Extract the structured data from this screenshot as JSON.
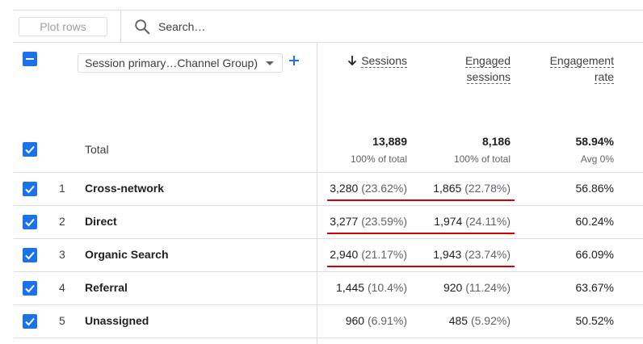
{
  "toolbar": {
    "plot_rows_label": "Plot rows",
    "search_placeholder": "Search…"
  },
  "dimension": {
    "selected": "Session primary…Channel Group)"
  },
  "columns": {
    "sessions": "Sessions",
    "engaged_sessions_line1": "Engaged",
    "engaged_sessions_line2": "sessions",
    "engagement_rate_line1": "Engagement",
    "engagement_rate_line2": "rate"
  },
  "totals": {
    "label": "Total",
    "sessions": "13,889",
    "sessions_sub": "100% of total",
    "engaged": "8,186",
    "engaged_sub": "100% of total",
    "rate": "58.94%",
    "rate_sub": "Avg 0%"
  },
  "rows": [
    {
      "num": "1",
      "label": "Cross-network",
      "sessions": "3,280",
      "sessions_pct": "(23.62%)",
      "engaged": "1,865",
      "engaged_pct": "(22.78%)",
      "rate": "56.86%"
    },
    {
      "num": "2",
      "label": "Direct",
      "sessions": "3,277",
      "sessions_pct": "(23.59%)",
      "engaged": "1,974",
      "engaged_pct": "(24.11%)",
      "rate": "60.24%"
    },
    {
      "num": "3",
      "label": "Organic Search",
      "sessions": "2,940",
      "sessions_pct": "(21.17%)",
      "engaged": "1,943",
      "engaged_pct": "(23.74%)",
      "rate": "66.09%"
    },
    {
      "num": "4",
      "label": "Referral",
      "sessions": "1,445",
      "sessions_pct": "(10.4%)",
      "engaged": "920",
      "engaged_pct": "(11.24%)",
      "rate": "63.67%"
    },
    {
      "num": "5",
      "label": "Unassigned",
      "sessions": "960",
      "sessions_pct": "(6.91%)",
      "engaged": "485",
      "engaged_pct": "(5.92%)",
      "rate": "50.52%"
    }
  ],
  "colors": {
    "accent": "#1a73e8",
    "annotation": "#d50000"
  }
}
